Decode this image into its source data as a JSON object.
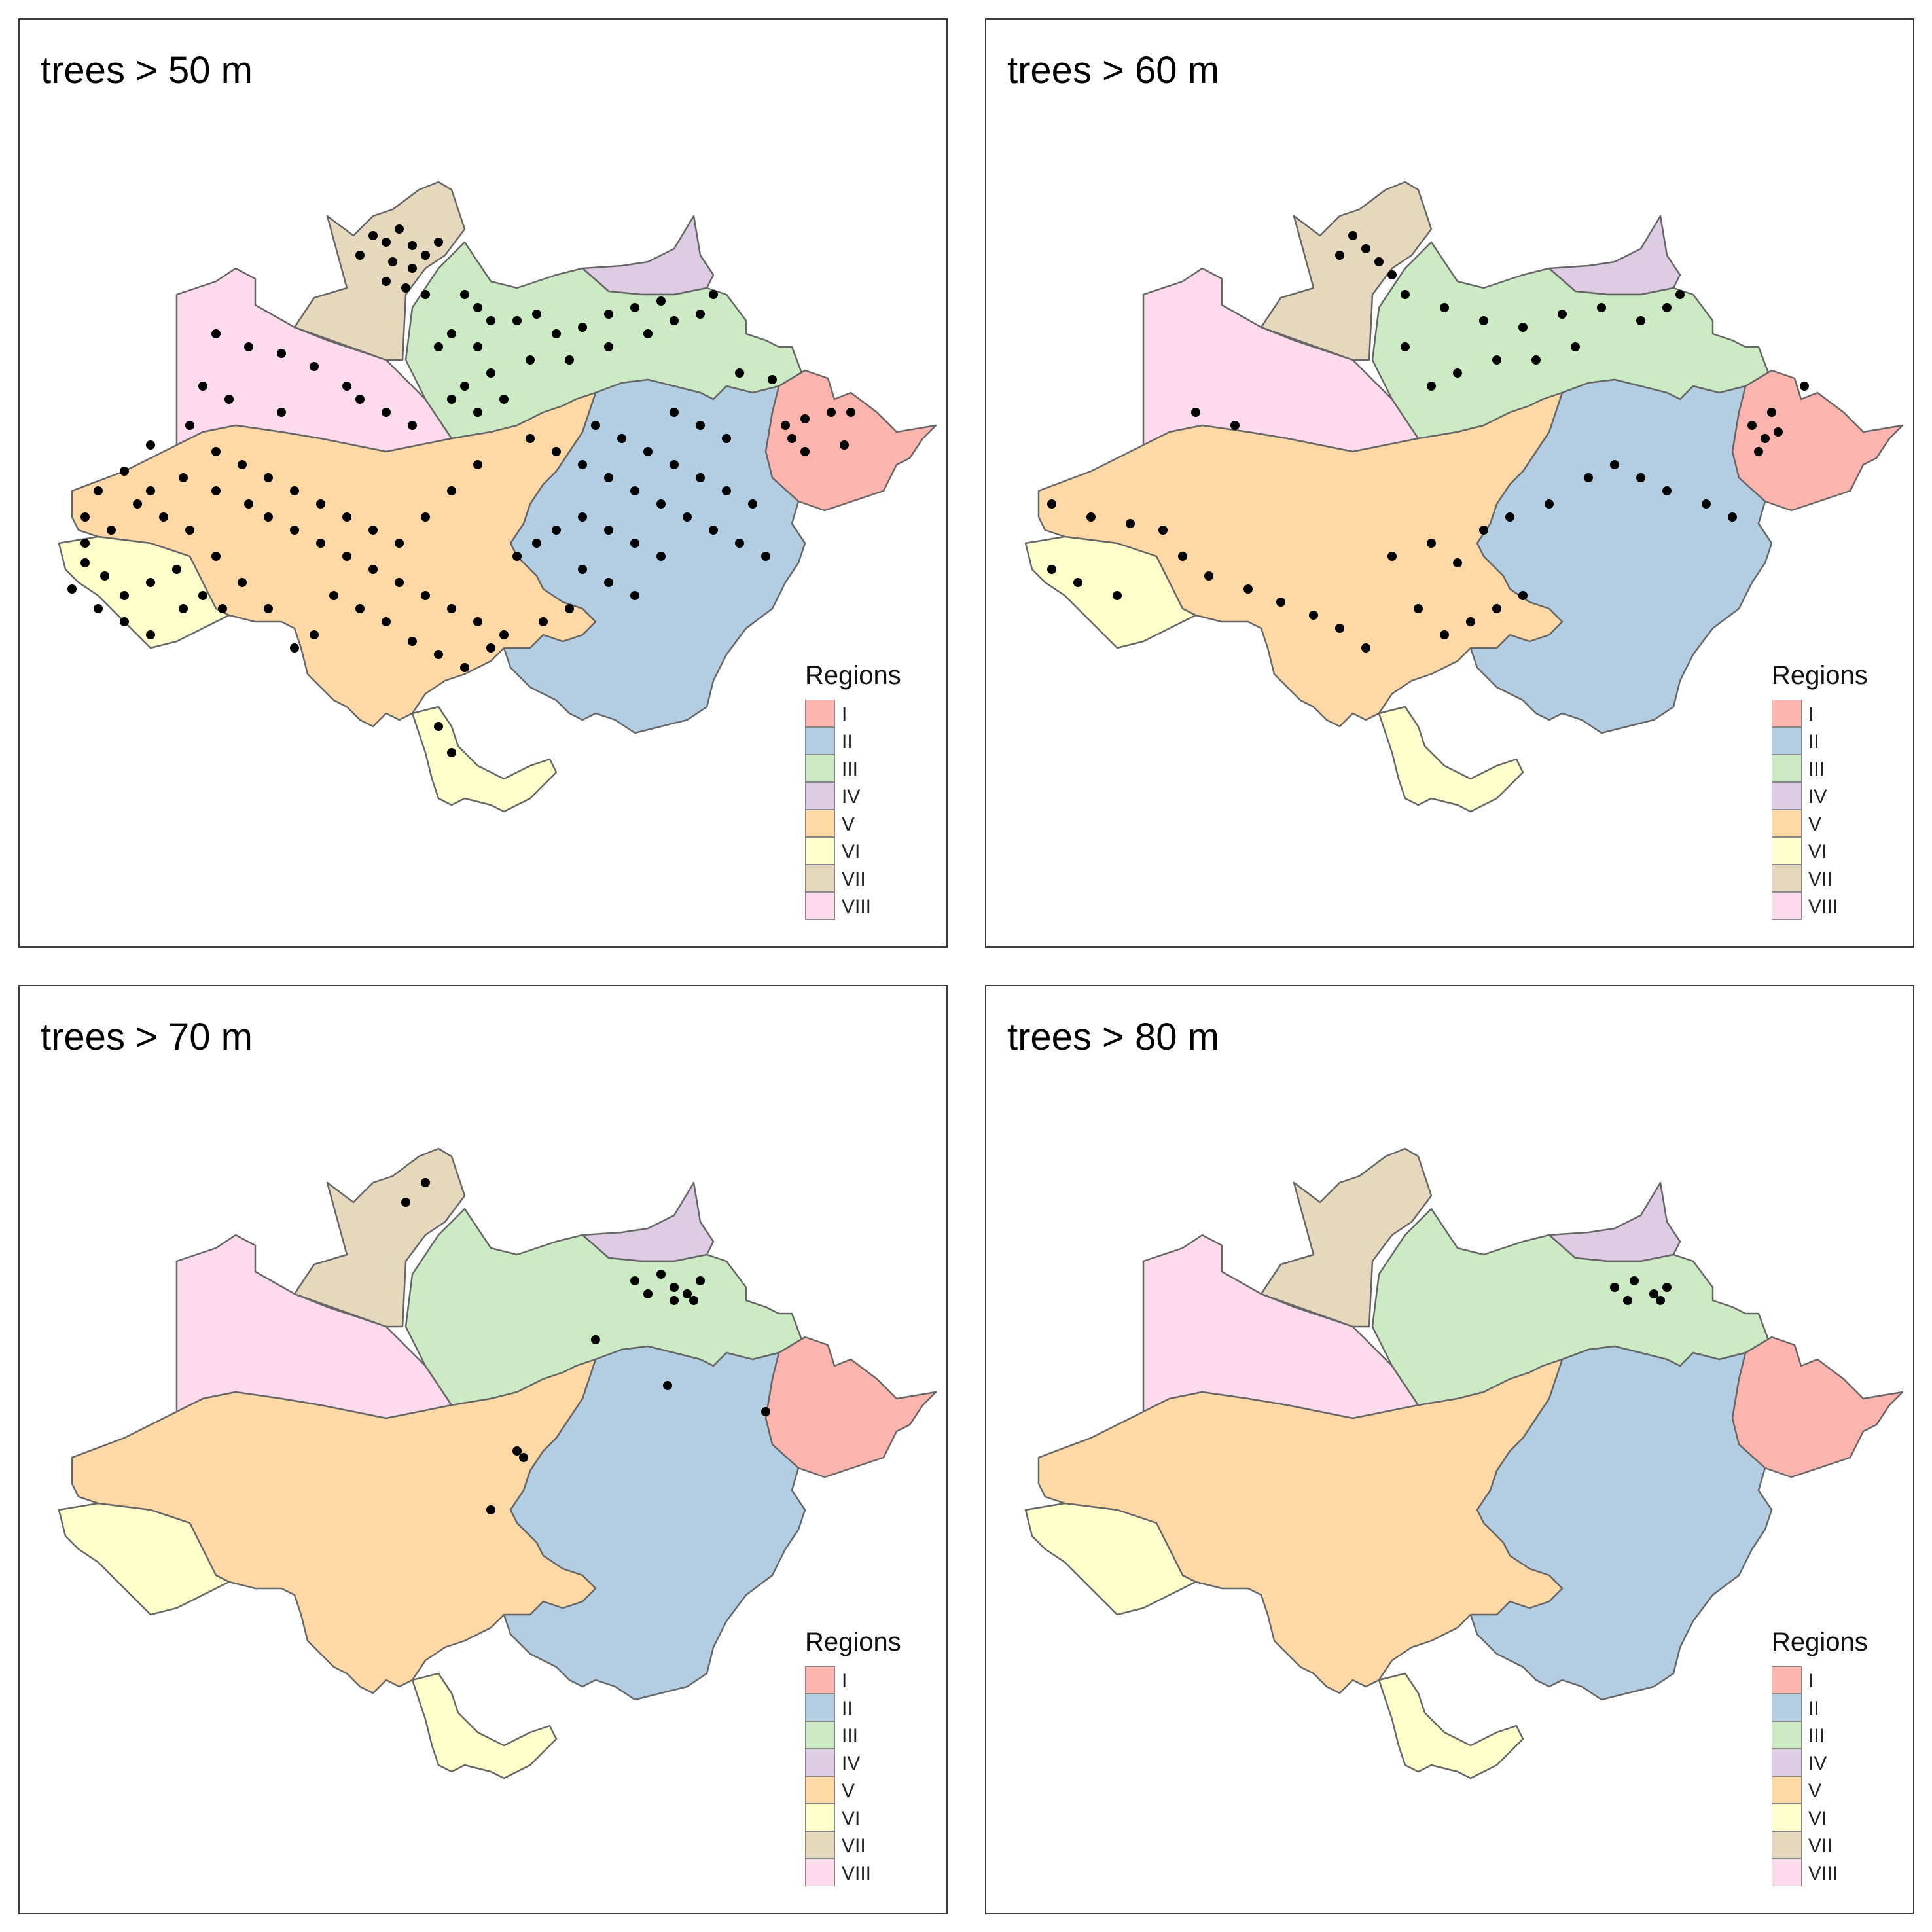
{
  "panels": [
    {
      "title": "trees > 50 m",
      "threshold_m": 50,
      "points": "p50"
    },
    {
      "title": "trees > 60 m",
      "threshold_m": 60,
      "points": "p60"
    },
    {
      "title": "trees > 70 m",
      "threshold_m": 70,
      "points": "p70"
    },
    {
      "title": "trees > 80 m",
      "threshold_m": 80,
      "points": "p80"
    }
  ],
  "legend": {
    "title": "Regions",
    "items": [
      {
        "label": "I",
        "color": "#fbb4ae"
      },
      {
        "label": "II",
        "color": "#b3cde3"
      },
      {
        "label": "III",
        "color": "#ccebc5"
      },
      {
        "label": "IV",
        "color": "#decbe4"
      },
      {
        "label": "V",
        "color": "#fed9a6"
      },
      {
        "label": "VI",
        "color": "#ffffcc"
      },
      {
        "label": "VII",
        "color": "#e5d8bd"
      },
      {
        "label": "VIII",
        "color": "#fddaec"
      }
    ]
  },
  "marker_color": "#000000"
}
